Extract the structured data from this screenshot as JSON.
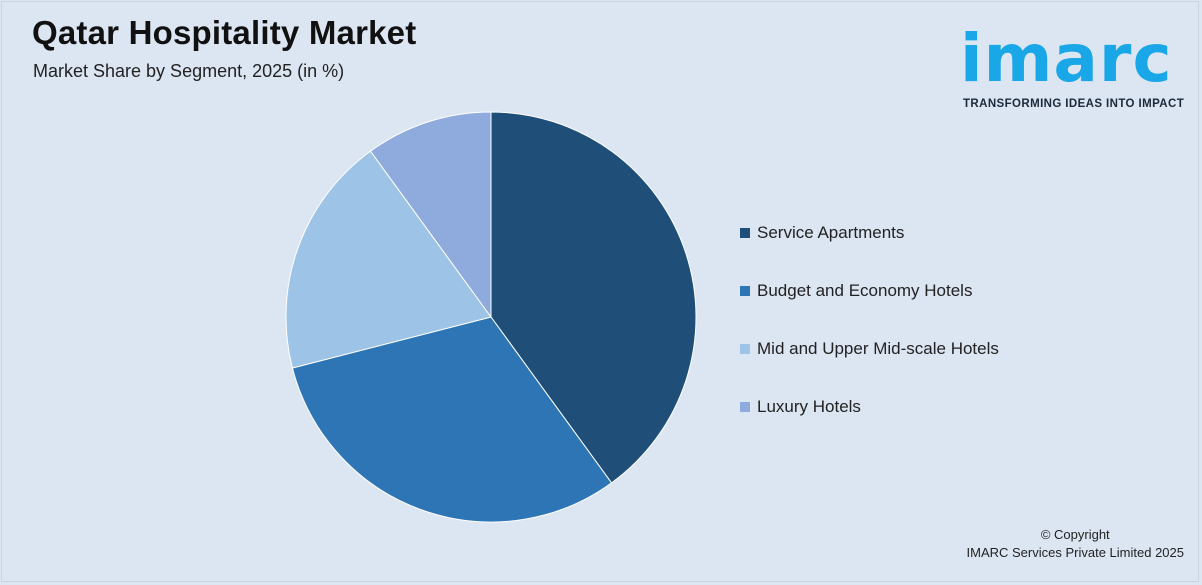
{
  "header": {
    "title": "Qatar Hospitality Market",
    "subtitle": "Market Share by Segment, 2025 (in %)"
  },
  "logo": {
    "word": "imarc",
    "tagline": "TRANSFORMING IDEAS INTO IMPACT",
    "color": "#1aa7e8"
  },
  "chart_data": {
    "type": "pie",
    "title": "Qatar Hospitality Market",
    "subtitle": "Market Share by Segment, 2025 (in %)",
    "legend_position": "right",
    "slices": [
      {
        "label": "Service Apartments",
        "value": 40,
        "color": "#1f4e79"
      },
      {
        "label": "Budget and Economy Hotels",
        "value": 31,
        "color": "#2e75b6"
      },
      {
        "label": "Mid and Upper Mid-scale Hotels",
        "value": 19,
        "color": "#9dc3e6"
      },
      {
        "label": "Luxury Hotels",
        "value": 10,
        "color": "#8faadc"
      }
    ]
  },
  "footer": {
    "copyright_line1": "© Copyright",
    "copyright_line2": "IMARC Services Private Limited 2025"
  }
}
